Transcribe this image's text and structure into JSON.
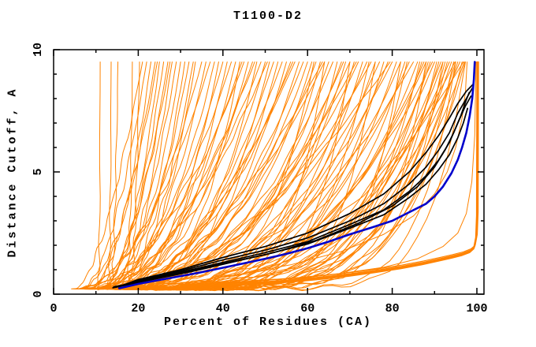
{
  "title": "T1100-D2",
  "chart_data": {
    "type": "line",
    "title": "T1100-D2",
    "xlabel": "Percent of Residues (CA)",
    "ylabel": "Distance Cutoff, A",
    "xlim": [
      0,
      101.7
    ],
    "ylim": [
      0,
      10
    ],
    "x_major_ticks": [
      {
        "v": 0,
        "label": "0"
      },
      {
        "v": 20,
        "label": "20"
      },
      {
        "v": 40,
        "label": "40"
      },
      {
        "v": 60,
        "label": "60"
      },
      {
        "v": 80,
        "label": "80"
      },
      {
        "v": 100,
        "label": "100"
      }
    ],
    "x_minor_ticks": [
      10,
      30,
      50,
      70,
      90
    ],
    "y_major_ticks": [
      {
        "v": 0,
        "label": "0"
      },
      {
        "v": 5,
        "label": "5"
      },
      {
        "v": 10,
        "label": "10"
      }
    ],
    "y_minor_ticks": [
      1,
      2,
      3,
      4,
      6,
      7,
      8,
      9
    ],
    "grid": false,
    "legend": "none",
    "colors": {
      "ensemble": "#ff8300",
      "best": "#0000cc",
      "highlight": "#000000",
      "frame": "#000000",
      "background": "#ffffff"
    },
    "y_start": 0.22,
    "y_top": 9.5,
    "series": {
      "ensemble_params_note": "each orange model curve = [start_percent_at_y0.22, percent_reaching_y9.5, shape_exponent]",
      "ensemble_params": [
        [
          10.3,
          11.0,
          5
        ],
        [
          12.6,
          13.6,
          4
        ],
        [
          13.2,
          15.2,
          2.5
        ],
        [
          17.0,
          18.6,
          3
        ],
        [
          17.9,
          20.3,
          2.2
        ],
        [
          5.2,
          21,
          1.6
        ],
        [
          6.5,
          22,
          1.8
        ],
        [
          8,
          23,
          2
        ],
        [
          9,
          24,
          1.7
        ],
        [
          10,
          25,
          2.2
        ],
        [
          11,
          26,
          1.9
        ],
        [
          7,
          27,
          2.4
        ],
        [
          12,
          28,
          2
        ],
        [
          13,
          29,
          1.8
        ],
        [
          8.5,
          30,
          2.6
        ],
        [
          14,
          31,
          2.1
        ],
        [
          9.5,
          32,
          2.3
        ],
        [
          15,
          33,
          1.9
        ],
        [
          6,
          24.5,
          2.0
        ],
        [
          11.5,
          27.5,
          1.7
        ],
        [
          12.8,
          33.5,
          2.4
        ],
        [
          4.2,
          35,
          2.2
        ],
        [
          5,
          36,
          2.8
        ],
        [
          6,
          37,
          1.9
        ],
        [
          7,
          38,
          2.5
        ],
        [
          8,
          39,
          3
        ],
        [
          9,
          40,
          2.1
        ],
        [
          10,
          41,
          2.7
        ],
        [
          11,
          42,
          1.8
        ],
        [
          12,
          43,
          2.4
        ],
        [
          13,
          44,
          3.2
        ],
        [
          5.5,
          45,
          2.0
        ],
        [
          6.5,
          46,
          2.9
        ],
        [
          7.5,
          47,
          2.2
        ],
        [
          8.5,
          48,
          3.4
        ],
        [
          9.5,
          49,
          1.9
        ],
        [
          10.5,
          50,
          2.6
        ],
        [
          11.5,
          51,
          3.1
        ],
        [
          12.5,
          52,
          2.3
        ],
        [
          13.5,
          53,
          2.8
        ],
        [
          14.5,
          54,
          2.0
        ],
        [
          5.8,
          55,
          3.3
        ],
        [
          6.8,
          56,
          2.5
        ],
        [
          7.8,
          57,
          2.1
        ],
        [
          8.8,
          58,
          3.0
        ],
        [
          9.8,
          59,
          2.4
        ],
        [
          10.8,
          60,
          2.7
        ],
        [
          14,
          47.5,
          1.6
        ],
        [
          15.5,
          56.5,
          1.8
        ],
        [
          16.5,
          44.5,
          1.5
        ],
        [
          18,
          50.5,
          1.4
        ],
        [
          4.5,
          61,
          3.5
        ],
        [
          5.5,
          62,
          2.8
        ],
        [
          6.5,
          63,
          4
        ],
        [
          7.5,
          64,
          2.2
        ],
        [
          8.5,
          65,
          3.2
        ],
        [
          9.5,
          66,
          2.6
        ],
        [
          10.5,
          67,
          4.5
        ],
        [
          11.5,
          68,
          2.9
        ],
        [
          12.5,
          69,
          3.6
        ],
        [
          13.5,
          70,
          2.4
        ],
        [
          14.5,
          71,
          3.9
        ],
        [
          5.2,
          72,
          2.7
        ],
        [
          6.2,
          73,
          4.2
        ],
        [
          7.2,
          74,
          3.0
        ],
        [
          8.2,
          75,
          2.3
        ],
        [
          9.2,
          76,
          3.7
        ],
        [
          10.2,
          77,
          2.8
        ],
        [
          11.2,
          78,
          4.4
        ],
        [
          12.2,
          79,
          3.1
        ],
        [
          13.2,
          80,
          2.5
        ],
        [
          14.2,
          81,
          3.8
        ],
        [
          15.2,
          82,
          2.9
        ],
        [
          5.8,
          83,
          4.6
        ],
        [
          6.8,
          84,
          3.3
        ],
        [
          7.8,
          85,
          2.6
        ],
        [
          16,
          63.5,
          1.7
        ],
        [
          17,
          71.5,
          1.9
        ],
        [
          18.5,
          79.5,
          1.6
        ],
        [
          19.5,
          68.5,
          2.1
        ],
        [
          8.9,
          61.5,
          5
        ],
        [
          11.8,
          74.5,
          5.5
        ],
        [
          13.8,
          83.5,
          6
        ],
        [
          5,
          86,
          4
        ],
        [
          6,
          87,
          5
        ],
        [
          7,
          88,
          3.4
        ],
        [
          8,
          89,
          4.8
        ],
        [
          9,
          90,
          3.8
        ],
        [
          10,
          91,
          5.5
        ],
        [
          11,
          92,
          4.2
        ],
        [
          12,
          93,
          6
        ],
        [
          13,
          94,
          4.6
        ],
        [
          14,
          95,
          5.2
        ],
        [
          15,
          96,
          3.6
        ],
        [
          16,
          97,
          4.4
        ],
        [
          6.4,
          86.5,
          6.5
        ],
        [
          7.4,
          88.5,
          5.8
        ],
        [
          8.4,
          90.5,
          7
        ],
        [
          9.4,
          92.5,
          6.2
        ],
        [
          10.4,
          94.5,
          7.5
        ],
        [
          11.4,
          96.5,
          6.8
        ],
        [
          12.4,
          87.5,
          3.2
        ],
        [
          13.4,
          91.5,
          3.9
        ],
        [
          14.4,
          95.5,
          4.9
        ],
        [
          15.4,
          89.5,
          2.8
        ],
        [
          16.4,
          93.5,
          3.5
        ],
        [
          17.4,
          97.2,
          5.6
        ],
        [
          18.4,
          94.8,
          2.9
        ],
        [
          19,
          96.8,
          2.4
        ],
        [
          9,
          64,
          7
        ],
        [
          10,
          70,
          7.5
        ],
        [
          11,
          76,
          8
        ],
        [
          12,
          82,
          8.5
        ],
        [
          13,
          88,
          9
        ],
        [
          14,
          92,
          8
        ],
        [
          15,
          95,
          9.5
        ],
        [
          16,
          97.3,
          10
        ]
      ],
      "flat_bundle": {
        "note": "tight bundle of orange curves hugging the bottom right, rising sharply near 100%",
        "base_points": [
          [
            30,
            0.3
          ],
          [
            38,
            0.33
          ],
          [
            46,
            0.38
          ],
          [
            52,
            0.44
          ],
          [
            58,
            0.52
          ],
          [
            64,
            0.62
          ],
          [
            70,
            0.74
          ],
          [
            76,
            0.88
          ],
          [
            82,
            1.04
          ],
          [
            87,
            1.2
          ],
          [
            91,
            1.35
          ],
          [
            94,
            1.47
          ],
          [
            96.5,
            1.58
          ],
          [
            98.3,
            1.7
          ],
          [
            99.3,
            1.85
          ],
          [
            99.8,
            2.3
          ],
          [
            100.0,
            3.2
          ],
          [
            100.1,
            9.5
          ]
        ],
        "offsets": [
          [
            0,
            0
          ],
          [
            0.1,
            0.05
          ],
          [
            0.2,
            0.1
          ],
          [
            0.3,
            0.15
          ],
          [
            -0.1,
            0.02
          ],
          [
            0.15,
            0.08
          ]
        ]
      },
      "loose_low_curves": [
        [
          [
            24,
            0.26
          ],
          [
            36,
            0.4
          ],
          [
            48,
            0.55
          ],
          [
            58,
            0.68
          ],
          [
            68,
            0.85
          ],
          [
            78,
            1.1
          ],
          [
            86,
            1.45
          ],
          [
            92,
            1.95
          ],
          [
            95.5,
            2.5
          ],
          [
            97.5,
            3.3
          ],
          [
            98.8,
            4.6
          ],
          [
            99.5,
            6.5
          ],
          [
            99.8,
            9.5
          ]
        ],
        [
          [
            20,
            0.24
          ],
          [
            32,
            0.5
          ],
          [
            44,
            0.82
          ],
          [
            56,
            1.2
          ],
          [
            68,
            1.75
          ],
          [
            78,
            2.45
          ],
          [
            85,
            3.2
          ],
          [
            90,
            4.1
          ],
          [
            93,
            5.0
          ],
          [
            95,
            6.0
          ],
          [
            96.5,
            7.2
          ],
          [
            97.3,
            8.3
          ],
          [
            97.7,
            9.5
          ]
        ]
      ],
      "black_models": [
        [
          [
            14.2,
            0.3
          ],
          [
            20,
            0.5
          ],
          [
            30,
            0.85
          ],
          [
            40,
            1.25
          ],
          [
            50,
            1.62
          ],
          [
            60,
            2.05
          ],
          [
            70,
            2.7
          ],
          [
            78,
            3.25
          ],
          [
            84,
            3.95
          ],
          [
            88,
            4.5
          ],
          [
            91,
            5.1
          ],
          [
            93.5,
            5.7
          ],
          [
            95.5,
            6.4
          ],
          [
            96.8,
            7.0
          ],
          [
            97.8,
            7.6
          ]
        ],
        [
          [
            14.6,
            0.28
          ],
          [
            20,
            0.52
          ],
          [
            30,
            0.9
          ],
          [
            40,
            1.3
          ],
          [
            50,
            1.7
          ],
          [
            60,
            2.15
          ],
          [
            70,
            2.85
          ],
          [
            78,
            3.45
          ],
          [
            84,
            4.2
          ],
          [
            88,
            4.85
          ],
          [
            91,
            5.5
          ],
          [
            93.5,
            6.2
          ],
          [
            95.5,
            7.0
          ],
          [
            97.3,
            7.7
          ],
          [
            98.6,
            8.1
          ]
        ],
        [
          [
            15.0,
            0.3
          ],
          [
            20,
            0.55
          ],
          [
            30,
            0.95
          ],
          [
            40,
            1.4
          ],
          [
            50,
            1.8
          ],
          [
            60,
            2.3
          ],
          [
            70,
            3.0
          ],
          [
            78,
            3.7
          ],
          [
            84,
            4.5
          ],
          [
            88,
            5.2
          ],
          [
            91,
            5.9
          ],
          [
            93.5,
            6.6
          ],
          [
            95.5,
            7.4
          ],
          [
            97.5,
            8.0
          ],
          [
            99.0,
            8.45
          ]
        ],
        [
          [
            15.4,
            0.3
          ],
          [
            20,
            0.6
          ],
          [
            30,
            1.0
          ],
          [
            40,
            1.5
          ],
          [
            50,
            1.95
          ],
          [
            60,
            2.5
          ],
          [
            70,
            3.3
          ],
          [
            78,
            4.1
          ],
          [
            84,
            5.0
          ],
          [
            88,
            5.8
          ],
          [
            91,
            6.5
          ],
          [
            93.5,
            7.2
          ],
          [
            95.5,
            7.8
          ],
          [
            97.5,
            8.3
          ],
          [
            99.2,
            8.6
          ]
        ],
        [
          [
            14.0,
            0.26
          ],
          [
            22,
            0.55
          ],
          [
            32,
            0.9
          ],
          [
            42,
            1.3
          ],
          [
            52,
            1.7
          ],
          [
            62,
            2.2
          ],
          [
            72,
            2.9
          ],
          [
            80,
            3.6
          ],
          [
            86,
            4.4
          ],
          [
            90,
            5.2
          ],
          [
            92.5,
            5.9
          ],
          [
            94.5,
            6.6
          ],
          [
            96.2,
            7.3
          ],
          [
            97.4,
            7.9
          ],
          [
            98.2,
            8.25
          ]
        ]
      ],
      "best_model_blue": [
        [
          15.5,
          0.24
        ],
        [
          20,
          0.42
        ],
        [
          25,
          0.58
        ],
        [
          30,
          0.74
        ],
        [
          35,
          0.9
        ],
        [
          40,
          1.08
        ],
        [
          45,
          1.26
        ],
        [
          50,
          1.45
        ],
        [
          55,
          1.65
        ],
        [
          60,
          1.88
        ],
        [
          65,
          2.15
        ],
        [
          70,
          2.45
        ],
        [
          75,
          2.72
        ],
        [
          80,
          3.0
        ],
        [
          84,
          3.35
        ],
        [
          88,
          3.7
        ],
        [
          90,
          4.0
        ],
        [
          92,
          4.4
        ],
        [
          94,
          4.95
        ],
        [
          95.5,
          5.5
        ],
        [
          96.5,
          6.0
        ],
        [
          97.5,
          6.6
        ],
        [
          98.3,
          7.3
        ],
        [
          98.9,
          8.0
        ],
        [
          99.3,
          8.8
        ],
        [
          99.5,
          9.5
        ]
      ]
    }
  }
}
